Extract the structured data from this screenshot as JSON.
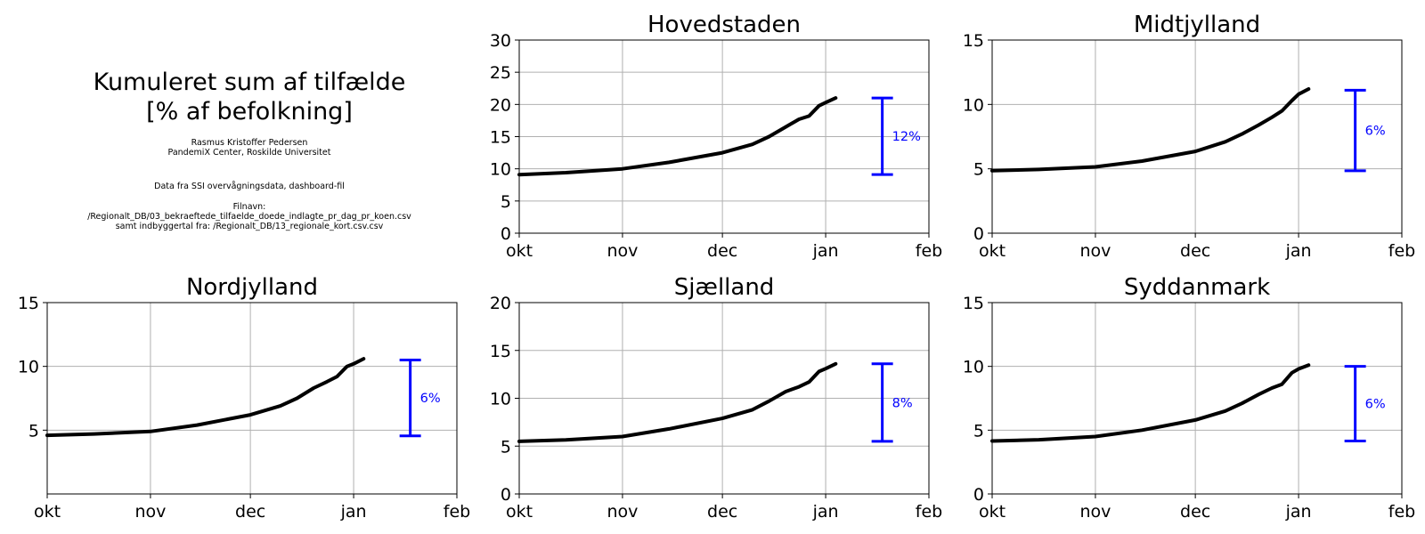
{
  "info": {
    "title_line1": "Kumuleret sum af tilfælde",
    "title_line2": "[% af befolkning]",
    "author_line1": "Rasmus Kristoffer Pedersen",
    "author_line2": "PandemiX Center, Roskilde Universitet",
    "source": "Data fra SSI overvågningsdata, dashboard-fil",
    "filename_label": "Filnavn:",
    "filename": "/Regionalt_DB/03_bekraeftede_tilfaelde_doede_indlagte_pr_dag_pr_koen.csv",
    "population_source": "samt indbyggertal fra: /Regionalt_DB/13_regionale_kort.csv.csv"
  },
  "colors": {
    "line": "#000000",
    "errorbar": "#0000ff",
    "grid": "#b0b0b0"
  },
  "chart_data": [
    {
      "type": "line",
      "title": "Hovedstaden",
      "xlim": [
        "2021-10-01",
        "2022-02-01"
      ],
      "xticks": [
        "2021-10-01",
        "2021-11-01",
        "2021-12-01",
        "2022-01-01",
        "2022-02-01"
      ],
      "xticklabels": [
        "okt",
        "nov",
        "dec",
        "jan",
        "feb"
      ],
      "ylim": [
        0,
        30
      ],
      "yticks": [
        0,
        5,
        10,
        15,
        20,
        25,
        30
      ],
      "grid": true,
      "series": [
        {
          "x": [
            "2021-10-01",
            "2021-10-15",
            "2021-11-01",
            "2021-11-15",
            "2021-12-01",
            "2021-12-10",
            "2021-12-15",
            "2021-12-20",
            "2021-12-24",
            "2021-12-27",
            "2021-12-30",
            "2022-01-01",
            "2022-01-04"
          ],
          "values": [
            9.1,
            9.4,
            10.0,
            11.0,
            12.5,
            13.8,
            15.0,
            16.5,
            17.7,
            18.2,
            19.8,
            20.3,
            21.0
          ]
        }
      ],
      "range_bar": {
        "x": "2022-01-18",
        "low": 9.1,
        "high": 21.0,
        "label": "12%"
      }
    },
    {
      "type": "line",
      "title": "Midtjylland",
      "xlim": [
        "2021-10-01",
        "2022-02-01"
      ],
      "xticks": [
        "2021-10-01",
        "2021-11-01",
        "2021-12-01",
        "2022-01-01",
        "2022-02-01"
      ],
      "xticklabels": [
        "okt",
        "nov",
        "dec",
        "jan",
        "feb"
      ],
      "ylim": [
        0,
        15
      ],
      "yticks": [
        0,
        5,
        10,
        15
      ],
      "grid": true,
      "series": [
        {
          "x": [
            "2021-10-01",
            "2021-10-15",
            "2021-11-01",
            "2021-11-15",
            "2021-12-01",
            "2021-12-10",
            "2021-12-15",
            "2021-12-20",
            "2021-12-24",
            "2021-12-27",
            "2021-12-30",
            "2022-01-01",
            "2022-01-04"
          ],
          "values": [
            4.85,
            4.95,
            5.15,
            5.6,
            6.35,
            7.1,
            7.7,
            8.4,
            9.0,
            9.5,
            10.3,
            10.8,
            11.2
          ]
        }
      ],
      "range_bar": {
        "x": "2022-01-18",
        "low": 4.85,
        "high": 11.1,
        "label": "6%"
      }
    },
    {
      "type": "line",
      "title": "Nordjylland",
      "xlim": [
        "2021-10-01",
        "2022-02-01"
      ],
      "xticks": [
        "2021-10-01",
        "2021-11-01",
        "2021-12-01",
        "2022-01-01",
        "2022-02-01"
      ],
      "xticklabels": [
        "okt",
        "nov",
        "dec",
        "jan",
        "feb"
      ],
      "ylim": [
        0,
        15
      ],
      "yticks": [
        5,
        10,
        15
      ],
      "grid": true,
      "series": [
        {
          "x": [
            "2021-10-01",
            "2021-10-15",
            "2021-11-01",
            "2021-11-15",
            "2021-12-01",
            "2021-12-10",
            "2021-12-15",
            "2021-12-20",
            "2021-12-24",
            "2021-12-27",
            "2021-12-30",
            "2022-01-01",
            "2022-01-04"
          ],
          "values": [
            4.6,
            4.7,
            4.9,
            5.4,
            6.2,
            6.9,
            7.5,
            8.3,
            8.8,
            9.2,
            10.0,
            10.2,
            10.6
          ]
        }
      ],
      "range_bar": {
        "x": "2022-01-18",
        "low": 4.55,
        "high": 10.5,
        "label": "6%"
      }
    },
    {
      "type": "line",
      "title": "Sjælland",
      "xlim": [
        "2021-10-01",
        "2022-02-01"
      ],
      "xticks": [
        "2021-10-01",
        "2021-11-01",
        "2021-12-01",
        "2022-01-01",
        "2022-02-01"
      ],
      "xticklabels": [
        "okt",
        "nov",
        "dec",
        "jan",
        "feb"
      ],
      "ylim": [
        0,
        20
      ],
      "yticks": [
        0,
        5,
        10,
        15,
        20
      ],
      "grid": true,
      "series": [
        {
          "x": [
            "2021-10-01",
            "2021-10-15",
            "2021-11-01",
            "2021-11-15",
            "2021-12-01",
            "2021-12-10",
            "2021-12-15",
            "2021-12-20",
            "2021-12-24",
            "2021-12-27",
            "2021-12-30",
            "2022-01-01",
            "2022-01-04"
          ],
          "values": [
            5.5,
            5.65,
            6.0,
            6.8,
            7.9,
            8.8,
            9.7,
            10.7,
            11.2,
            11.7,
            12.8,
            13.1,
            13.6
          ]
        }
      ],
      "range_bar": {
        "x": "2022-01-18",
        "low": 5.5,
        "high": 13.6,
        "label": "8%"
      }
    },
    {
      "type": "line",
      "title": "Syddanmark",
      "xlim": [
        "2021-10-01",
        "2022-02-01"
      ],
      "xticks": [
        "2021-10-01",
        "2021-11-01",
        "2021-12-01",
        "2022-01-01",
        "2022-02-01"
      ],
      "xticklabels": [
        "okt",
        "nov",
        "dec",
        "jan",
        "feb"
      ],
      "ylim": [
        0,
        15
      ],
      "yticks": [
        0,
        5,
        10,
        15
      ],
      "grid": true,
      "series": [
        {
          "x": [
            "2021-10-01",
            "2021-10-15",
            "2021-11-01",
            "2021-11-15",
            "2021-12-01",
            "2021-12-10",
            "2021-12-15",
            "2021-12-20",
            "2021-12-24",
            "2021-12-27",
            "2021-12-30",
            "2022-01-01",
            "2022-01-04"
          ],
          "values": [
            4.15,
            4.25,
            4.5,
            5.0,
            5.8,
            6.5,
            7.1,
            7.8,
            8.3,
            8.6,
            9.5,
            9.8,
            10.1
          ]
        }
      ],
      "range_bar": {
        "x": "2022-01-18",
        "low": 4.15,
        "high": 10.0,
        "label": "6%"
      }
    }
  ]
}
